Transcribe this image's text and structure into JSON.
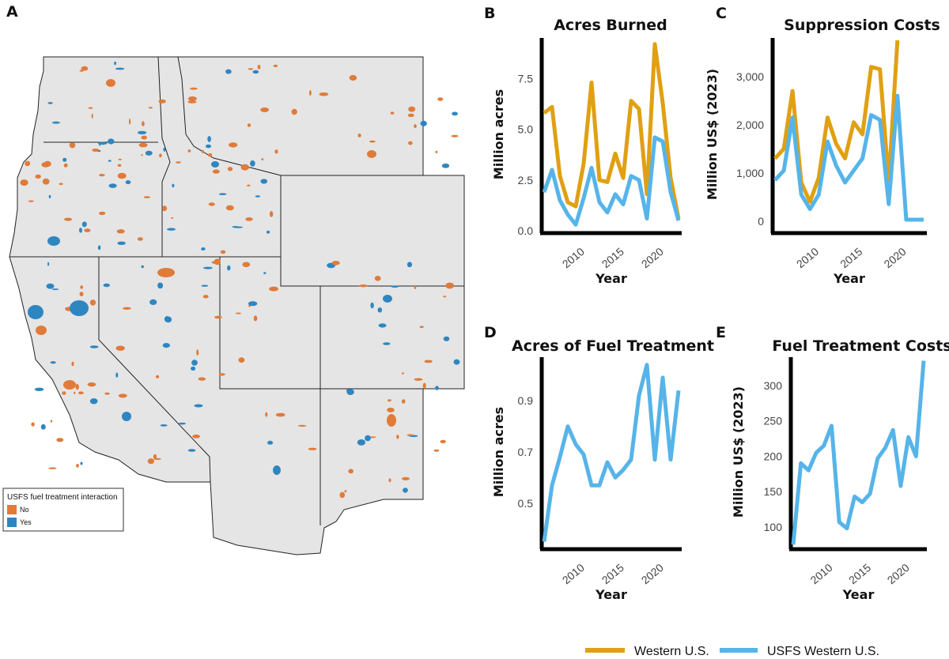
{
  "panels": {
    "a": "A",
    "b": "B",
    "c": "C",
    "d": "D",
    "e": "E"
  },
  "colors": {
    "western": "#E0A012",
    "usfs": "#56B4E9",
    "map_no": "#E07B39",
    "map_yes": "#2E86C1",
    "land": "#E5E5E5"
  },
  "map_legend": {
    "title": "USFS fuel treatment interaction",
    "no": "No",
    "yes": "Yes"
  },
  "legend": {
    "western": "Western U.S.",
    "usfs": "USFS Western U.S."
  },
  "chart_data": [
    {
      "id": "B",
      "type": "line",
      "title": "Acres Burned",
      "xlabel": "Year",
      "ylabel": "Million acres",
      "xlim": [
        2006,
        2023
      ],
      "ylim": [
        0,
        9.5
      ],
      "xticks": [
        "2010",
        "2015",
        "2020"
      ],
      "yticks": [
        "0.0",
        "2.5",
        "5.0",
        "7.5"
      ],
      "series": [
        {
          "name": "Western U.S.",
          "x": [
            2006,
            2007,
            2008,
            2009,
            2010,
            2011,
            2012,
            2013,
            2014,
            2015,
            2016,
            2017,
            2018,
            2019,
            2020,
            2021,
            2022,
            2023
          ],
          "values": [
            5.8,
            6.1,
            2.7,
            1.4,
            1.2,
            3.3,
            7.3,
            2.5,
            2.4,
            3.8,
            2.6,
            6.4,
            6.0,
            1.8,
            9.2,
            6.3,
            2.6,
            0.6
          ]
        },
        {
          "name": "USFS Western U.S.",
          "x": [
            2006,
            2007,
            2008,
            2009,
            2010,
            2011,
            2012,
            2013,
            2014,
            2015,
            2016,
            2017,
            2018,
            2019,
            2020,
            2021,
            2022,
            2023
          ],
          "values": [
            1.9,
            3.0,
            1.5,
            0.8,
            0.3,
            1.6,
            3.1,
            1.4,
            0.9,
            1.8,
            1.3,
            2.7,
            2.5,
            0.6,
            4.6,
            4.4,
            1.9,
            0.5
          ]
        }
      ]
    },
    {
      "id": "C",
      "type": "line",
      "title": "Suppression Costs",
      "xlabel": "Year",
      "ylabel": "Million US$ (2023)",
      "xlim": [
        2006,
        2023
      ],
      "ylim": [
        -200,
        3800
      ],
      "xticks": [
        "2010",
        "2015",
        "2020"
      ],
      "yticks": [
        "0",
        "1,000",
        "2,000",
        "3,000"
      ],
      "series": [
        {
          "name": "Western U.S.",
          "x": [
            2006,
            2007,
            2008,
            2009,
            2010,
            2011,
            2012,
            2013,
            2014,
            2015,
            2016,
            2017,
            2018,
            2019,
            2020
          ],
          "values": [
            1300,
            1500,
            2700,
            800,
            400,
            900,
            2150,
            1600,
            1300,
            2050,
            1800,
            3200,
            3150,
            800,
            3750
          ]
        },
        {
          "name": "USFS Western U.S.",
          "x": [
            2006,
            2007,
            2008,
            2009,
            2010,
            2011,
            2012,
            2013,
            2014,
            2015,
            2016,
            2017,
            2018,
            2019,
            2020,
            2021,
            2022,
            2023
          ],
          "values": [
            850,
            1050,
            2150,
            550,
            250,
            550,
            1650,
            1150,
            800,
            1050,
            1300,
            2200,
            2100,
            350,
            2600,
            30,
            30,
            30
          ]
        }
      ]
    },
    {
      "id": "D",
      "type": "line",
      "title": "Acres of Fuel Treatment",
      "xlabel": "Year",
      "ylabel": "Million acres",
      "xlim": [
        2006,
        2023
      ],
      "ylim": [
        0.33,
        1.07
      ],
      "xticks": [
        "2010",
        "2015",
        "2020"
      ],
      "yticks": [
        "0.5",
        "0.7",
        "0.9"
      ],
      "series": [
        {
          "name": "USFS Western U.S.",
          "x": [
            2006,
            2007,
            2008,
            2009,
            2010,
            2011,
            2012,
            2013,
            2014,
            2015,
            2016,
            2017,
            2018,
            2019,
            2020,
            2021,
            2022,
            2023
          ],
          "values": [
            0.35,
            0.57,
            0.68,
            0.8,
            0.73,
            0.69,
            0.57,
            0.57,
            0.66,
            0.6,
            0.63,
            0.67,
            0.92,
            1.04,
            0.67,
            0.99,
            0.67,
            0.94
          ]
        }
      ]
    },
    {
      "id": "E",
      "type": "line",
      "title": "Fuel Treatment Costs",
      "xlabel": "Year",
      "ylabel": "Million US$ (2023)",
      "xlim": [
        2006,
        2023
      ],
      "ylim": [
        72,
        340
      ],
      "xticks": [
        "2010",
        "2015",
        "2020"
      ],
      "yticks": [
        "100",
        "150",
        "200",
        "250",
        "300"
      ],
      "series": [
        {
          "name": "USFS Western U.S.",
          "x": [
            2006,
            2007,
            2008,
            2009,
            2010,
            2011,
            2012,
            2013,
            2014,
            2015,
            2016,
            2017,
            2018,
            2019,
            2020,
            2021,
            2022,
            2023
          ],
          "values": [
            75,
            190,
            180,
            205,
            215,
            243,
            107,
            98,
            143,
            135,
            147,
            197,
            212,
            237,
            158,
            227,
            200,
            335
          ]
        }
      ]
    }
  ]
}
